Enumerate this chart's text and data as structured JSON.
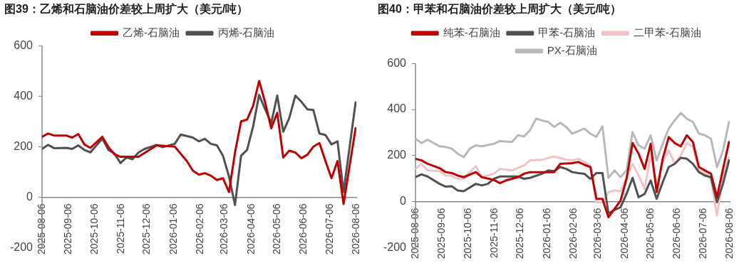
{
  "chart_data": [
    {
      "type": "line",
      "title": "图39：乙烯和石脑油价差较上周扩大（美元/吨）",
      "legend": "top",
      "grid": false,
      "marker": "none",
      "line_style": "solid",
      "xlim": [
        "2025-08-06",
        "2026-08-06"
      ],
      "xticks": [
        "2025-08-06",
        "2025-09-06",
        "2025-10-06",
        "2025-11-06",
        "2025-12-06",
        "2026-01-06",
        "2026-02-06",
        "2026-03-06",
        "2026-04-06",
        "2026-05-06",
        "2026-06-06",
        "2026-07-06",
        "2026-08-06"
      ],
      "ylim": [
        -200,
        600
      ],
      "yticks": [
        -200,
        0,
        200,
        400,
        600
      ],
      "series": [
        {
          "name": "乙烯-石脑油",
          "color": "#c00000",
          "x": [
            "2025-08-06",
            "2025-08-13",
            "2025-08-20",
            "2025-09-03",
            "2025-09-10",
            "2025-09-17",
            "2025-09-24",
            "2025-10-01",
            "2025-10-15",
            "2025-10-22",
            "2025-10-29",
            "2025-11-05",
            "2025-11-26",
            "2025-12-17",
            "2026-01-07",
            "2026-01-21",
            "2026-01-28",
            "2026-02-04",
            "2026-02-11",
            "2026-02-18",
            "2026-02-25",
            "2026-03-04",
            "2026-03-11",
            "2026-03-18",
            "2026-03-25",
            "2026-04-01",
            "2026-04-08",
            "2026-04-15",
            "2026-04-22",
            "2026-04-29",
            "2026-05-06",
            "2026-05-13",
            "2026-05-20",
            "2026-05-27",
            "2026-06-03",
            "2026-06-10",
            "2026-06-17",
            "2026-06-24",
            "2026-07-01",
            "2026-07-08",
            "2026-07-15",
            "2026-07-22",
            "2026-08-05"
          ],
          "values": [
            239,
            252,
            244,
            244,
            236,
            250,
            209,
            195,
            239,
            198,
            170,
            160,
            160,
            205,
            200,
            143,
            105,
            89,
            95,
            85,
            68,
            75,
            20,
            177,
            300,
            307,
            362,
            460,
            375,
            273,
            334,
            157,
            184,
            177,
            154,
            168,
            200,
            214,
            143,
            75,
            143,
            -27,
            273
          ]
        },
        {
          "name": "丙烯-石脑油",
          "color": "#505055",
          "x": [
            "2025-08-06",
            "2025-08-13",
            "2025-08-20",
            "2025-09-03",
            "2025-09-10",
            "2025-09-17",
            "2025-09-24",
            "2025-10-01",
            "2025-10-15",
            "2025-10-22",
            "2025-10-29",
            "2025-11-05",
            "2025-11-12",
            "2025-11-19",
            "2025-11-26",
            "2025-12-03",
            "2025-12-17",
            "2025-12-24",
            "2026-01-07",
            "2026-01-14",
            "2026-01-28",
            "2026-02-04",
            "2026-02-11",
            "2026-02-18",
            "2026-02-25",
            "2026-03-04",
            "2026-03-11",
            "2026-03-18",
            "2026-03-25",
            "2026-04-01",
            "2026-04-08",
            "2026-04-15",
            "2026-04-22",
            "2026-04-29",
            "2026-05-06",
            "2026-05-13",
            "2026-05-20",
            "2026-05-27",
            "2026-06-03",
            "2026-06-10",
            "2026-06-17",
            "2026-06-24",
            "2026-07-01",
            "2026-07-08",
            "2026-07-15",
            "2026-07-22",
            "2026-08-05"
          ],
          "values": [
            191,
            207,
            194,
            195,
            191,
            205,
            187,
            177,
            232,
            187,
            173,
            135,
            157,
            150,
            177,
            191,
            207,
            198,
            211,
            248,
            236,
            221,
            231,
            211,
            205,
            164,
            82,
            -31,
            164,
            187,
            280,
            405,
            348,
            293,
            402,
            259,
            314,
            402,
            378,
            348,
            345,
            252,
            246,
            209,
            221,
            20,
            375
          ]
        }
      ]
    },
    {
      "type": "line",
      "title": "图40：甲苯和石脑油价差较上周扩大（美元/吨）",
      "legend": "top",
      "grid": false,
      "marker": "none",
      "line_style": "solid",
      "xlim": [
        "2025-08-06",
        "2026-08-06"
      ],
      "xticks": [
        "2025-08-06",
        "2025-09-06",
        "2025-10-06",
        "2025-11-06",
        "2025-12-06",
        "2026-01-06",
        "2026-02-06",
        "2026-03-06",
        "2026-04-06",
        "2026-05-06",
        "2026-06-06",
        "2026-07-06",
        "2026-08-06"
      ],
      "ylim": [
        -200,
        600
      ],
      "yticks": [
        -200,
        0,
        200,
        400,
        600
      ],
      "series": [
        {
          "name": "纯苯-石脑油",
          "color": "#c00000",
          "x": [
            "2025-08-06",
            "2025-08-13",
            "2025-08-20",
            "2025-09-03",
            "2025-09-10",
            "2025-09-17",
            "2025-09-24",
            "2025-10-01",
            "2025-10-15",
            "2025-10-22",
            "2025-11-05",
            "2025-11-12",
            "2025-11-19",
            "2025-12-03",
            "2025-12-10",
            "2025-12-17",
            "2026-01-07",
            "2026-01-14",
            "2026-01-21",
            "2026-02-04",
            "2026-02-11",
            "2026-02-18",
            "2026-02-25",
            "2026-03-04",
            "2026-03-11",
            "2026-03-18",
            "2026-03-25",
            "2026-04-01",
            "2026-04-08",
            "2026-04-15",
            "2026-04-22",
            "2026-04-29",
            "2026-05-06",
            "2026-05-13",
            "2026-05-20",
            "2026-05-27",
            "2026-06-03",
            "2026-06-10",
            "2026-06-17",
            "2026-06-24",
            "2026-07-01",
            "2026-07-08",
            "2026-07-15",
            "2026-07-22",
            "2026-07-29",
            "2026-08-05"
          ],
          "values": [
            186,
            179,
            164,
            145,
            128,
            124,
            113,
            106,
            128,
            106,
            94,
            80,
            92,
            106,
            121,
            128,
            128,
            128,
            164,
            167,
            172,
            160,
            150,
            12,
            12,
            -68,
            -32,
            4,
            99,
            254,
            208,
            142,
            251,
            41,
            186,
            280,
            254,
            240,
            288,
            259,
            150,
            135,
            121,
            19,
            142,
            259
          ]
        },
        {
          "name": "甲苯-石脑油",
          "color": "#505055",
          "x": [
            "2025-08-06",
            "2025-08-13",
            "2025-08-20",
            "2025-09-03",
            "2025-09-10",
            "2025-09-17",
            "2025-09-24",
            "2025-10-01",
            "2025-10-15",
            "2025-10-22",
            "2025-10-29",
            "2025-11-05",
            "2025-11-12",
            "2025-12-03",
            "2025-12-10",
            "2025-12-17",
            "2025-12-31",
            "2026-01-07",
            "2026-01-14",
            "2026-01-21",
            "2026-01-28",
            "2026-02-04",
            "2026-02-11",
            "2026-02-18",
            "2026-02-25",
            "2026-03-04",
            "2026-03-11",
            "2026-03-18",
            "2026-03-25",
            "2026-04-01",
            "2026-04-08",
            "2026-04-15",
            "2026-04-22",
            "2026-04-29",
            "2026-05-06",
            "2026-05-13",
            "2026-05-20",
            "2026-05-27",
            "2026-06-03",
            "2026-06-10",
            "2026-06-17",
            "2026-06-24",
            "2026-07-01",
            "2026-07-08",
            "2026-07-15",
            "2026-07-22",
            "2026-07-29",
            "2026-08-05"
          ],
          "values": [
            106,
            118,
            109,
            77,
            65,
            67,
            48,
            45,
            77,
            70,
            77,
            99,
            109,
            109,
            99,
            103,
            121,
            135,
            132,
            150,
            142,
            128,
            124,
            121,
            99,
            124,
            124,
            -51,
            -36,
            -25,
            33,
            103,
            19,
            33,
            92,
            12,
            84,
            150,
            164,
            190,
            186,
            164,
            128,
            113,
            106,
            -3,
            77,
            179
          ]
        },
        {
          "name": "二甲苯-石脑油",
          "color": "#f0c4c4",
          "x": [
            "2025-08-06",
            "2025-08-13",
            "2025-08-20",
            "2025-09-03",
            "2025-09-10",
            "2025-09-17",
            "2025-09-24",
            "2025-10-01",
            "2025-10-08",
            "2025-10-15",
            "2025-10-22",
            "2025-11-05",
            "2025-11-12",
            "2025-11-26",
            "2025-12-10",
            "2025-12-17",
            "2025-12-31",
            "2026-01-14",
            "2026-01-28",
            "2026-02-04",
            "2026-02-11",
            "2026-02-18",
            "2026-02-25",
            "2026-03-04",
            "2026-03-11",
            "2026-03-18",
            "2026-03-25",
            "2026-04-01",
            "2026-04-08",
            "2026-04-15",
            "2026-04-22",
            "2026-04-29",
            "2026-05-06",
            "2026-05-13",
            "2026-05-20",
            "2026-05-27",
            "2026-06-03",
            "2026-06-10",
            "2026-06-17",
            "2026-06-24",
            "2026-07-01",
            "2026-07-08",
            "2026-07-15",
            "2026-07-22",
            "2026-07-29",
            "2026-08-05"
          ],
          "values": [
            142,
            164,
            135,
            132,
            113,
            112,
            99,
            99,
            128,
            154,
            106,
            121,
            142,
            135,
            157,
            179,
            182,
            196,
            182,
            179,
            186,
            172,
            157,
            -3,
            -3,
            41,
            48,
            45,
            106,
            164,
            113,
            55,
            201,
            62,
            172,
            222,
            164,
            201,
            254,
            237,
            135,
            121,
            99,
            -61,
            106,
            193
          ]
        },
        {
          "name": "PX-石脑油",
          "color": "#b8b8b8",
          "x": [
            "2025-08-06",
            "2025-08-13",
            "2025-08-20",
            "2025-09-03",
            "2025-09-10",
            "2025-09-17",
            "2025-09-24",
            "2025-10-01",
            "2025-10-08",
            "2025-10-15",
            "2025-10-22",
            "2025-11-05",
            "2025-11-12",
            "2025-11-26",
            "2025-12-03",
            "2025-12-10",
            "2025-12-17",
            "2025-12-24",
            "2025-12-31",
            "2026-01-07",
            "2026-01-14",
            "2026-01-21",
            "2026-01-28",
            "2026-02-04",
            "2026-02-18",
            "2026-02-25",
            "2026-03-04",
            "2026-03-11",
            "2026-03-18",
            "2026-03-25",
            "2026-04-01",
            "2026-04-08",
            "2026-04-15",
            "2026-04-22",
            "2026-04-29",
            "2026-05-06",
            "2026-05-13",
            "2026-05-20",
            "2026-05-27",
            "2026-06-03",
            "2026-06-10",
            "2026-06-17",
            "2026-06-24",
            "2026-07-01",
            "2026-07-08",
            "2026-07-15",
            "2026-07-22",
            "2026-07-29",
            "2026-08-05"
          ],
          "values": [
            273,
            254,
            269,
            240,
            237,
            230,
            208,
            193,
            230,
            244,
            240,
            251,
            263,
            259,
            288,
            283,
            310,
            360,
            352,
            346,
            324,
            342,
            324,
            295,
            317,
            295,
            281,
            327,
            103,
            135,
            106,
            135,
            302,
            244,
            230,
            288,
            179,
            251,
            317,
            353,
            385,
            360,
            346,
            295,
            288,
            273,
            150,
            222,
            346
          ]
        }
      ]
    }
  ]
}
